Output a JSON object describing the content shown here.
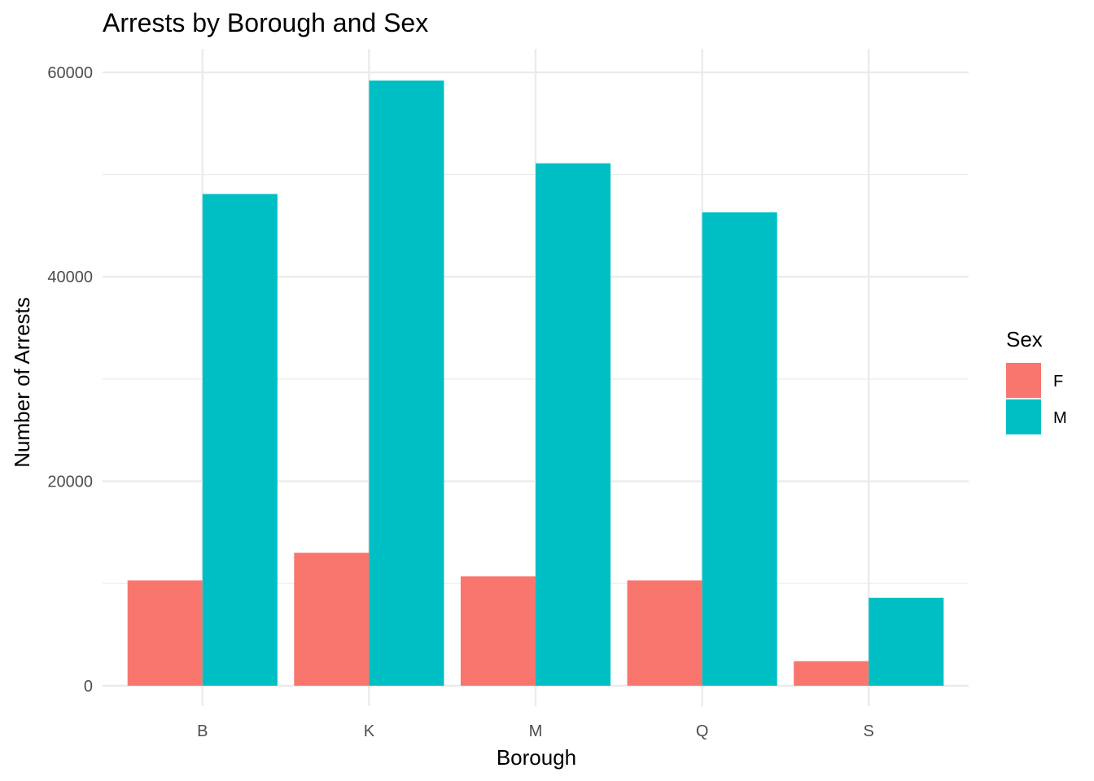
{
  "chart_data": {
    "type": "bar",
    "title": "Arrests by Borough and Sex",
    "xlabel": "Borough",
    "ylabel": "Number of Arrests",
    "categories": [
      "B",
      "K",
      "M",
      "Q",
      "S"
    ],
    "ylim": [
      -2000,
      62300
    ],
    "yticks": [
      0,
      20000,
      40000,
      60000
    ],
    "yticks_labels": [
      "0",
      "20000",
      "40000",
      "60000"
    ],
    "grid": true,
    "legend": {
      "title": "Sex",
      "placement": "right"
    },
    "series": [
      {
        "name": "F",
        "color": "#F8766D",
        "values": [
          10300,
          13000,
          10700,
          10300,
          2400
        ]
      },
      {
        "name": "M",
        "color": "#00BFC4",
        "values": [
          48100,
          59200,
          51100,
          46300,
          8600
        ]
      }
    ]
  }
}
